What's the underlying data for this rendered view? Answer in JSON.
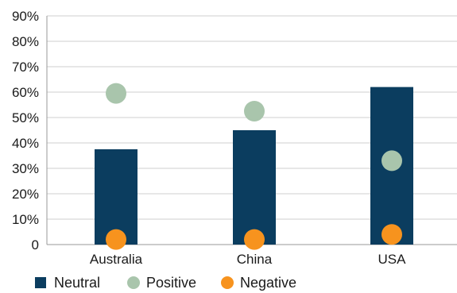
{
  "chart_data": {
    "type": "bar",
    "categories": [
      "Australia",
      "China",
      "USA"
    ],
    "y_ticks": [
      "0",
      "10%",
      "20%",
      "30%",
      "40%",
      "50%",
      "60%",
      "70%",
      "80%",
      "90%"
    ],
    "ylim": [
      0,
      90
    ],
    "grid": true,
    "legend_position": "bottom-left",
    "series": [
      {
        "name": "Neutral",
        "kind": "bar",
        "color": "#0b3d5f",
        "values": [
          37.5,
          45,
          62
        ]
      },
      {
        "name": "Positive",
        "kind": "point",
        "color": "#a9c5ac",
        "values": [
          59.5,
          52.5,
          33
        ]
      },
      {
        "name": "Negative",
        "kind": "point",
        "color": "#f7931e",
        "values": [
          2,
          2,
          4
        ]
      }
    ]
  }
}
